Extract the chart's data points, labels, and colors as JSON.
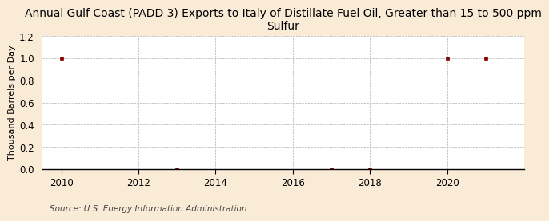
{
  "title": "Annual Gulf Coast (PADD 3) Exports to Italy of Distillate Fuel Oil, Greater than 15 to 500 ppm\nSulfur",
  "ylabel": "Thousand Barrels per Day",
  "source": "Source: U.S. Energy Information Administration",
  "background_color": "#faebd7",
  "plot_bg_color": "#ffffff",
  "data_points": [
    [
      2010,
      1.0
    ],
    [
      2013,
      0.0
    ],
    [
      2017,
      0.0
    ],
    [
      2018,
      0.0
    ],
    [
      2020,
      1.0
    ],
    [
      2021,
      1.0
    ]
  ],
  "xlim": [
    2009.5,
    2022.0
  ],
  "ylim": [
    0.0,
    1.2
  ],
  "yticks": [
    0.0,
    0.2,
    0.4,
    0.6,
    0.8,
    1.0,
    1.2
  ],
  "xticks": [
    2010,
    2012,
    2014,
    2016,
    2018,
    2020
  ],
  "marker_color": "#8b0000",
  "grid_color": "#b0b0b0",
  "title_fontsize": 10,
  "label_fontsize": 8,
  "tick_fontsize": 8.5,
  "source_fontsize": 7.5
}
